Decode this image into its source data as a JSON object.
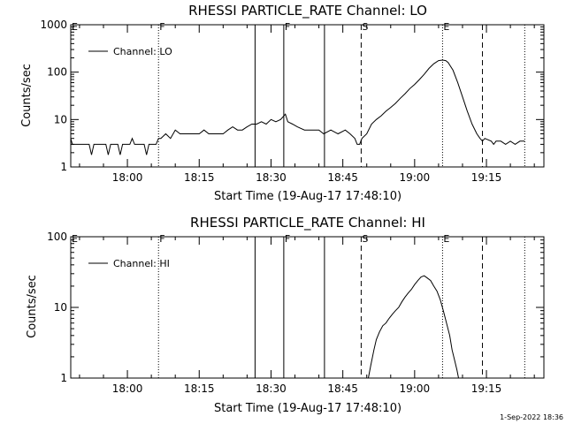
{
  "footer": "1-Sep-2022 18:36",
  "chart_data": [
    {
      "type": "line",
      "title": "RHESSI PARTICLE_RATE Channel: LO",
      "xlabel": "Start Time (19-Aug-17 17:48:10)",
      "ylabel": "Counts/sec",
      "xlim": [
        "17:48:10",
        "19:27:00"
      ],
      "ylim": [
        1,
        1000
      ],
      "yscale": "log",
      "xticks": [
        "18:00",
        "18:15",
        "18:30",
        "18:45",
        "19:00",
        "19:15"
      ],
      "yticks": [
        "1",
        "10",
        "100",
        "1000"
      ],
      "legend": {
        "entries": [
          "Channel: LO"
        ],
        "placement": "top-left"
      },
      "markers": [
        {
          "label": "E",
          "time": "17:48:10",
          "style": "solid"
        },
        {
          "label": "F",
          "time": "18:06:30",
          "style": "dotted"
        },
        {
          "label": "",
          "time": "18:26:40",
          "style": "solid"
        },
        {
          "label": "F",
          "time": "18:32:40",
          "style": "solid"
        },
        {
          "label": "",
          "time": "18:41:10",
          "style": "solid"
        },
        {
          "label": "S",
          "time": "18:48:50",
          "style": "dashed"
        },
        {
          "label": "E",
          "time": "19:05:50",
          "style": "dotted"
        },
        {
          "label": "",
          "time": "19:14:10",
          "style": "dashed"
        },
        {
          "label": "",
          "time": "19:23:00",
          "style": "dotted"
        }
      ],
      "series": [
        {
          "name": "Channel: LO",
          "x": [
            "17:48:10",
            "17:48:30",
            "17:49:00",
            "17:52:00",
            "17:52:30",
            "17:53:00",
            "17:55:30",
            "17:56:00",
            "17:56:30",
            "17:58:00",
            "17:58:30",
            "17:59:00",
            "18:00:30",
            "18:01:00",
            "18:01:30",
            "18:03:30",
            "18:04:00",
            "18:04:30",
            "18:06:00",
            "18:06:30",
            "18:07:00",
            "18:08:00",
            "18:09:00",
            "18:10:00",
            "18:11:00",
            "18:12:00",
            "18:13:00",
            "18:14:00",
            "18:15:00",
            "18:16:00",
            "18:17:00",
            "18:18:00",
            "18:19:00",
            "18:20:00",
            "18:21:00",
            "18:22:00",
            "18:23:00",
            "18:24:00",
            "18:25:00",
            "18:26:00",
            "18:27:00",
            "18:28:00",
            "18:29:00",
            "18:30:00",
            "18:31:00",
            "18:32:00",
            "18:33:00",
            "18:33:30",
            "18:34:30",
            "18:35:30",
            "18:37:00",
            "18:38:00",
            "18:40:00",
            "18:41:00",
            "18:42:30",
            "18:44:00",
            "18:45:30",
            "18:46:30",
            "18:47:30",
            "18:48:00",
            "18:48:30",
            "18:49:00",
            "18:50:00",
            "18:51:00",
            "18:52:00",
            "18:53:00",
            "18:54:00",
            "18:55:00",
            "18:56:00",
            "18:57:00",
            "18:58:00",
            "18:59:00",
            "19:00:00",
            "19:01:00",
            "19:02:00",
            "19:03:00",
            "19:04:00",
            "19:05:00",
            "19:05:50",
            "19:06:30",
            "19:07:00",
            "19:08:00",
            "19:09:00",
            "19:10:00",
            "19:11:00",
            "19:12:00",
            "19:13:00",
            "19:13:40",
            "19:14:10",
            "19:14:40",
            "19:16:00",
            "19:16:30",
            "19:17:00",
            "19:18:00",
            "19:19:00",
            "19:20:00",
            "19:21:00",
            "19:22:00",
            "19:23:00"
          ],
          "y": [
            4,
            3,
            3,
            3,
            1.8,
            3,
            3,
            1.8,
            3,
            3,
            1.8,
            3,
            3,
            4,
            3,
            3,
            1.8,
            3,
            3,
            4,
            4,
            5,
            4,
            6,
            5,
            5,
            5,
            5,
            5,
            6,
            5,
            5,
            5,
            5,
            6,
            7,
            6,
            6,
            7,
            8,
            8,
            9,
            8,
            10,
            9,
            10,
            13,
            9,
            8,
            7,
            6,
            6,
            6,
            5,
            6,
            5,
            6,
            5,
            4,
            3,
            3,
            4,
            5,
            8,
            10,
            12,
            15,
            18,
            22,
            28,
            35,
            45,
            55,
            70,
            90,
            120,
            150,
            175,
            180,
            175,
            160,
            110,
            60,
            30,
            15,
            8,
            5,
            4,
            3.5,
            4,
            3.5,
            3,
            3.5,
            3.5,
            3,
            3.5,
            3,
            3.5,
            3.5
          ]
        }
      ]
    },
    {
      "type": "line",
      "title": "RHESSI PARTICLE_RATE Channel: HI",
      "xlabel": "Start Time (19-Aug-17 17:48:10)",
      "ylabel": "Counts/sec",
      "xlim": [
        "17:48:10",
        "19:27:00"
      ],
      "ylim": [
        1,
        100
      ],
      "yscale": "log",
      "xticks": [
        "18:00",
        "18:15",
        "18:30",
        "18:45",
        "19:00",
        "19:15"
      ],
      "yticks": [
        "1",
        "10",
        "100"
      ],
      "legend": {
        "entries": [
          "Channel: HI"
        ],
        "placement": "top-left"
      },
      "markers": [
        {
          "label": "E",
          "time": "17:48:10",
          "style": "solid"
        },
        {
          "label": "F",
          "time": "18:06:30",
          "style": "dotted"
        },
        {
          "label": "",
          "time": "18:26:40",
          "style": "solid"
        },
        {
          "label": "F",
          "time": "18:32:40",
          "style": "solid"
        },
        {
          "label": "",
          "time": "18:41:10",
          "style": "solid"
        },
        {
          "label": "S",
          "time": "18:48:50",
          "style": "dashed"
        },
        {
          "label": "E",
          "time": "19:05:50",
          "style": "dotted"
        },
        {
          "label": "",
          "time": "19:14:10",
          "style": "dashed"
        },
        {
          "label": "",
          "time": "19:23:00",
          "style": "dotted"
        }
      ],
      "series": [
        {
          "name": "Channel: HI",
          "x": [
            "18:50:20",
            "18:50:50",
            "18:51:30",
            "18:52:00",
            "18:52:40",
            "18:53:20",
            "18:54:00",
            "18:54:40",
            "18:55:20",
            "18:56:00",
            "18:56:40",
            "18:57:20",
            "18:58:00",
            "18:58:40",
            "18:59:20",
            "19:00:00",
            "19:00:40",
            "19:01:20",
            "19:02:00",
            "19:02:40",
            "19:03:20",
            "19:04:00",
            "19:04:40",
            "19:05:20",
            "19:06:00",
            "19:06:40",
            "19:07:20",
            "19:07:50",
            "19:08:20",
            "19:08:50",
            "19:09:10"
          ],
          "y": [
            1,
            1.5,
            2.5,
            3.5,
            4.5,
            5.5,
            6,
            7,
            8,
            9,
            10,
            12,
            14,
            16,
            18,
            21,
            24,
            27,
            28,
            26,
            24,
            20,
            17,
            13,
            9,
            6,
            4,
            2.5,
            1.8,
            1.3,
            1
          ]
        }
      ]
    }
  ]
}
